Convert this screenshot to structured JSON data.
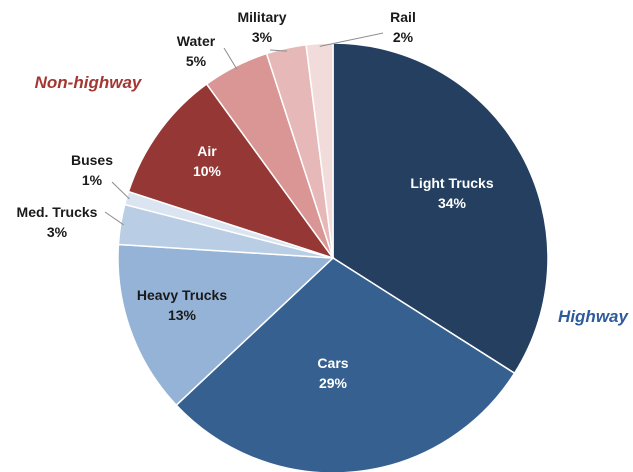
{
  "chart_data": {
    "type": "pie",
    "title": "",
    "slices": [
      {
        "label": "Light Trucks",
        "value": 34,
        "value_text": "34%",
        "color": "#243f60",
        "label_color": "#ffffff",
        "group": "Highway"
      },
      {
        "label": "Cars",
        "value": 29,
        "value_text": "29%",
        "color": "#35608f",
        "label_color": "#ffffff",
        "group": "Highway"
      },
      {
        "label": "Heavy Trucks",
        "value": 13,
        "value_text": "13%",
        "color": "#95b3d7",
        "label_color": "#1a1a1a",
        "group": "Highway"
      },
      {
        "label": "Med. Trucks",
        "value": 3,
        "value_text": "3%",
        "color": "#b9cde5",
        "label_color": "#1a1a1a",
        "group": "Highway"
      },
      {
        "label": "Buses",
        "value": 1,
        "value_text": "1%",
        "color": "#dbe5f1",
        "label_color": "#1a1a1a",
        "group": "Highway"
      },
      {
        "label": "Air",
        "value": 10,
        "value_text": "10%",
        "color": "#953735",
        "label_color": "#ffffff",
        "group": "Non-highway"
      },
      {
        "label": "Water",
        "value": 5,
        "value_text": "5%",
        "color": "#d99694",
        "label_color": "#1a1a1a",
        "group": "Non-highway"
      },
      {
        "label": "Military",
        "value": 3,
        "value_text": "3%",
        "color": "#e6b9b8",
        "label_color": "#1a1a1a",
        "group": "Non-highway"
      },
      {
        "label": "Rail",
        "value": 2,
        "value_text": "2%",
        "color": "#f2dcdb",
        "label_color": "#1a1a1a",
        "group": "Non-highway"
      }
    ],
    "groups": [
      {
        "name": "Highway",
        "color": "#2e5c9a"
      },
      {
        "name": "Non-highway",
        "color": "#a33734"
      }
    ]
  }
}
